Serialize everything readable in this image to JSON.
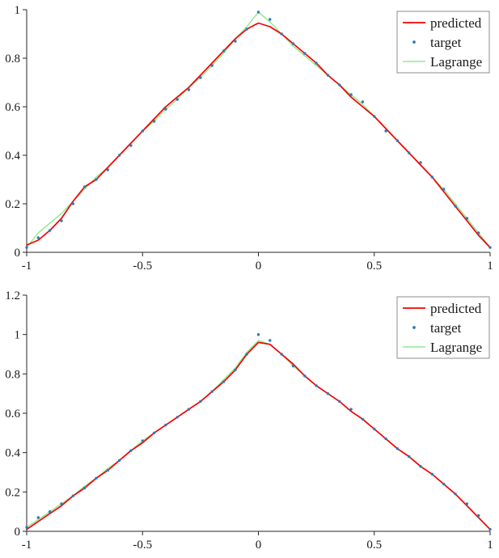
{
  "figure": {
    "background": "#ffffff",
    "description": "Two stacked MATLAB-style plots comparing predicted curve, target samples and Lagrange interpolation of a peaked tent-like function on [-1,1]"
  },
  "colors": {
    "predicted": "#f40000",
    "target": "#2f79b8",
    "lagrange": "#7de87d",
    "axis": "#262626",
    "legend_border": "#8c8c8c"
  },
  "chart_data": [
    {
      "type": "line",
      "title": "",
      "xlabel": "",
      "ylabel": "",
      "xlim": [
        -1,
        1
      ],
      "ylim": [
        0,
        1
      ],
      "grid": false,
      "legend_position": "top-right",
      "xticks": {
        "values": [
          -1,
          -0.5,
          0,
          0.5,
          1
        ],
        "labels": [
          "-1",
          "-0.5",
          "0",
          "0.5",
          "1"
        ]
      },
      "yticks": {
        "values": [
          0,
          0.2,
          0.4,
          0.6,
          0.8,
          1
        ],
        "labels": [
          "0",
          "0.2",
          "0.4",
          "0.6",
          "0.8",
          "1"
        ]
      },
      "x": [
        -1,
        -0.95,
        -0.9,
        -0.85,
        -0.8,
        -0.75,
        -0.7,
        -0.65,
        -0.6,
        -0.55,
        -0.5,
        -0.45,
        -0.4,
        -0.35,
        -0.3,
        -0.25,
        -0.2,
        -0.15,
        -0.1,
        -0.05,
        0,
        0.05,
        0.1,
        0.15,
        0.2,
        0.25,
        0.3,
        0.35,
        0.4,
        0.45,
        0.5,
        0.55,
        0.6,
        0.65,
        0.7,
        0.75,
        0.8,
        0.85,
        0.9,
        0.95,
        1
      ],
      "series": [
        {
          "name": "predicted",
          "style": "line",
          "color": "#f40000",
          "width": 1.7,
          "y": [
            0.03,
            0.05,
            0.09,
            0.14,
            0.21,
            0.27,
            0.3,
            0.35,
            0.4,
            0.45,
            0.5,
            0.55,
            0.6,
            0.64,
            0.68,
            0.73,
            0.78,
            0.83,
            0.88,
            0.92,
            0.945,
            0.93,
            0.9,
            0.86,
            0.82,
            0.78,
            0.73,
            0.69,
            0.64,
            0.6,
            0.56,
            0.51,
            0.46,
            0.41,
            0.36,
            0.31,
            0.25,
            0.19,
            0.13,
            0.07,
            0.02
          ]
        },
        {
          "name": "target",
          "style": "scatter",
          "color": "#2f79b8",
          "marker": "dot",
          "y": [
            0.02,
            0.06,
            0.09,
            0.13,
            0.2,
            0.27,
            0.3,
            0.34,
            0.4,
            0.44,
            0.5,
            0.54,
            0.59,
            0.63,
            0.67,
            0.72,
            0.77,
            0.83,
            0.87,
            0.92,
            0.99,
            0.96,
            0.9,
            0.86,
            0.82,
            0.78,
            0.73,
            0.69,
            0.65,
            0.62,
            0.56,
            0.5,
            0.46,
            0.41,
            0.37,
            0.31,
            0.26,
            0.19,
            0.14,
            0.08,
            0.02
          ]
        },
        {
          "name": "Lagrange",
          "style": "line",
          "color": "#7de87d",
          "width": 1.2,
          "y": [
            0.02,
            0.08,
            0.12,
            0.16,
            0.21,
            0.26,
            0.31,
            0.35,
            0.4,
            0.45,
            0.5,
            0.54,
            0.59,
            0.63,
            0.68,
            0.72,
            0.77,
            0.82,
            0.88,
            0.93,
            0.99,
            0.95,
            0.9,
            0.85,
            0.81,
            0.77,
            0.73,
            0.69,
            0.65,
            0.61,
            0.56,
            0.51,
            0.46,
            0.41,
            0.36,
            0.31,
            0.26,
            0.2,
            0.14,
            0.08,
            0.02
          ]
        }
      ]
    },
    {
      "type": "line",
      "title": "",
      "xlabel": "",
      "ylabel": "",
      "xlim": [
        -1,
        1
      ],
      "ylim": [
        0,
        1.2
      ],
      "grid": false,
      "legend_position": "top-right",
      "xticks": {
        "values": [
          -1,
          -0.5,
          0,
          0.5,
          1
        ],
        "labels": [
          "-1",
          "-0.5",
          "0",
          "0.5",
          "1"
        ]
      },
      "yticks": {
        "values": [
          0,
          0.2,
          0.4,
          0.6,
          0.8,
          1,
          1.2
        ],
        "labels": [
          "0",
          "0.2",
          "0.4",
          "0.6",
          "0.8",
          "1",
          "1.2"
        ]
      },
      "x": [
        -1,
        -0.95,
        -0.9,
        -0.85,
        -0.8,
        -0.75,
        -0.7,
        -0.65,
        -0.6,
        -0.55,
        -0.5,
        -0.45,
        -0.4,
        -0.35,
        -0.3,
        -0.25,
        -0.2,
        -0.15,
        -0.1,
        -0.05,
        0,
        0.05,
        0.1,
        0.15,
        0.2,
        0.25,
        0.3,
        0.35,
        0.4,
        0.45,
        0.5,
        0.55,
        0.6,
        0.65,
        0.7,
        0.75,
        0.8,
        0.85,
        0.9,
        0.95,
        1
      ],
      "series": [
        {
          "name": "predicted",
          "style": "line",
          "color": "#f40000",
          "width": 1.7,
          "y": [
            0.01,
            0.05,
            0.09,
            0.13,
            0.18,
            0.22,
            0.27,
            0.31,
            0.36,
            0.41,
            0.45,
            0.5,
            0.54,
            0.58,
            0.62,
            0.66,
            0.71,
            0.76,
            0.82,
            0.9,
            0.96,
            0.95,
            0.9,
            0.85,
            0.79,
            0.74,
            0.7,
            0.66,
            0.61,
            0.57,
            0.52,
            0.47,
            0.42,
            0.38,
            0.33,
            0.29,
            0.24,
            0.19,
            0.13,
            0.07,
            0.01
          ]
        },
        {
          "name": "target",
          "style": "scatter",
          "color": "#2f79b8",
          "marker": "dot",
          "y": [
            0.02,
            0.07,
            0.1,
            0.14,
            0.18,
            0.22,
            0.27,
            0.31,
            0.36,
            0.41,
            0.46,
            0.5,
            0.54,
            0.58,
            0.62,
            0.66,
            0.71,
            0.76,
            0.82,
            0.9,
            1.0,
            0.97,
            0.9,
            0.84,
            0.79,
            0.74,
            0.7,
            0.66,
            0.62,
            0.57,
            0.52,
            0.47,
            0.42,
            0.38,
            0.33,
            0.29,
            0.24,
            0.19,
            0.14,
            0.08,
            0.01
          ]
        },
        {
          "name": "Lagrange",
          "style": "line",
          "color": "#7de87d",
          "width": 1.2,
          "y": [
            0.02,
            0.06,
            0.1,
            0.14,
            0.18,
            0.23,
            0.27,
            0.32,
            0.36,
            0.41,
            0.46,
            0.5,
            0.54,
            0.58,
            0.62,
            0.66,
            0.71,
            0.77,
            0.83,
            0.91,
            0.97,
            0.95,
            0.9,
            0.84,
            0.79,
            0.74,
            0.7,
            0.66,
            0.61,
            0.57,
            0.52,
            0.47,
            0.42,
            0.38,
            0.33,
            0.29,
            0.24,
            0.19,
            0.13,
            0.07,
            0.01
          ]
        }
      ]
    }
  ]
}
